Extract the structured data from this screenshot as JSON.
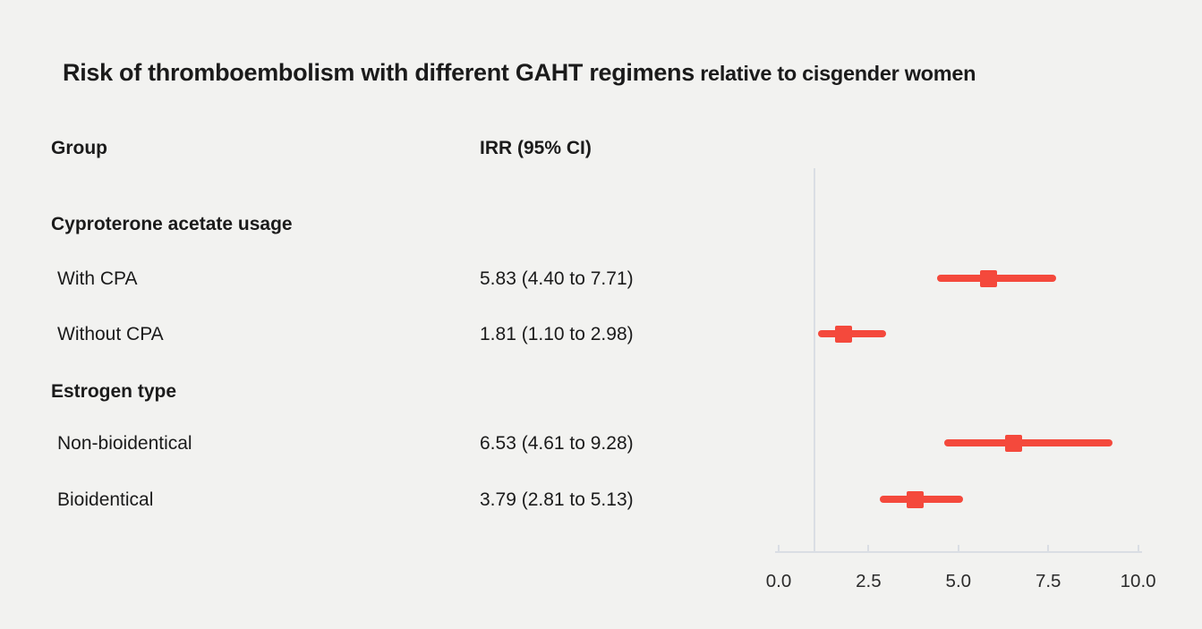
{
  "title": {
    "main": "Risk of thromboembolism with different GAHT regimens",
    "suffix": " relative to cisgender women"
  },
  "columns": {
    "group": "Group",
    "irr": "IRR (95% CI)"
  },
  "colors": {
    "marker": "#f4493c",
    "axis": "#dadee4",
    "background": "#f2f2f0",
    "text": "#1b1b1b"
  },
  "chart_data": {
    "type": "scatter",
    "subtype": "forest-plot",
    "title": "Risk of thromboembolism with different GAHT regimens relative to cisgender women",
    "xlabel": "",
    "ylabel": "",
    "x_axis": {
      "ticks": [
        0.0,
        2.5,
        5.0,
        7.5,
        10.0
      ],
      "tick_labels": [
        "0.0",
        "2.5",
        "5.0",
        "7.5",
        "10.0"
      ],
      "range": [
        0,
        10.5
      ]
    },
    "reference_line_x": 1.0,
    "grid": false,
    "legend": false,
    "groups": [
      {
        "label": "Cyproterone acetate usage",
        "rows": [
          {
            "label": "With CPA",
            "irr_text": "5.83 (4.40 to 7.71)",
            "irr": 5.83,
            "ci_low": 4.4,
            "ci_high": 7.71
          },
          {
            "label": "Without CPA",
            "irr_text": "1.81 (1.10 to 2.98)",
            "irr": 1.81,
            "ci_low": 1.1,
            "ci_high": 2.98
          }
        ]
      },
      {
        "label": "Estrogen type",
        "rows": [
          {
            "label": "Non-bioidentical",
            "irr_text": "6.53 (4.61 to 9.28)",
            "irr": 6.53,
            "ci_low": 4.61,
            "ci_high": 9.28
          },
          {
            "label": "Bioidentical",
            "irr_text": "3.79 (2.81 to 5.13)",
            "irr": 3.79,
            "ci_low": 2.81,
            "ci_high": 5.13
          }
        ]
      }
    ]
  }
}
